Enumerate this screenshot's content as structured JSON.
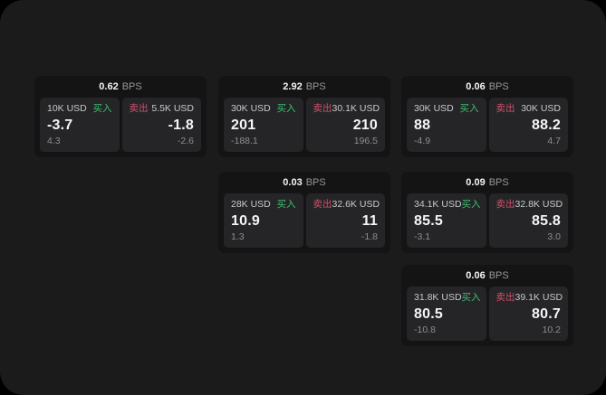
{
  "page": {
    "background": "#000000",
    "panel_background": "#1b1b1c"
  },
  "labels": {
    "buy": "买入",
    "sell": "卖出",
    "bps_suffix": "BPS"
  },
  "colors": {
    "panel_bg": "#1b1b1c",
    "card_bg": "#141415",
    "pane_bg": "#252527",
    "buy_green": "#3dbe6e",
    "sell_red": "#d0506c",
    "text_primary": "#f4f5f6",
    "text_secondary": "#c7c9cb",
    "text_muted": "#96979a",
    "text_dim": "#8b8d90"
  },
  "cards": [
    {
      "grid": {
        "row": 1,
        "col": 1
      },
      "bps": "0.62",
      "buy": {
        "amount": "10K USD",
        "price": "-3.7",
        "change": "4.3"
      },
      "sell": {
        "amount": "5.5K USD",
        "price": "-1.8",
        "change": "-2.6"
      }
    },
    {
      "grid": {
        "row": 1,
        "col": 2
      },
      "bps": "2.92",
      "buy": {
        "amount": "30K USD",
        "price": "201",
        "change": "-188.1"
      },
      "sell": {
        "amount": "30.1K USD",
        "price": "210",
        "change": "196.5"
      }
    },
    {
      "grid": {
        "row": 1,
        "col": 3
      },
      "bps": "0.06",
      "buy": {
        "amount": "30K USD",
        "price": "88",
        "change": "-4.9"
      },
      "sell": {
        "amount": "30K USD",
        "price": "88.2",
        "change": "4.7"
      }
    },
    {
      "grid": {
        "row": 2,
        "col": 2
      },
      "bps": "0.03",
      "buy": {
        "amount": "28K USD",
        "price": "10.9",
        "change": "1.3"
      },
      "sell": {
        "amount": "32.6K USD",
        "price": "11",
        "change": "-1.8"
      }
    },
    {
      "grid": {
        "row": 2,
        "col": 3
      },
      "bps": "0.09",
      "buy": {
        "amount": "34.1K USD",
        "price": "85.5",
        "change": "-3.1"
      },
      "sell": {
        "amount": "32.8K USD",
        "price": "85.8",
        "change": "3.0"
      }
    },
    {
      "grid": {
        "row": 3,
        "col": 3
      },
      "bps": "0.06",
      "buy": {
        "amount": "31.8K USD",
        "price": "80.5",
        "change": "-10.8"
      },
      "sell": {
        "amount": "39.1K USD",
        "price": "80.7",
        "change": "10.2"
      }
    }
  ]
}
